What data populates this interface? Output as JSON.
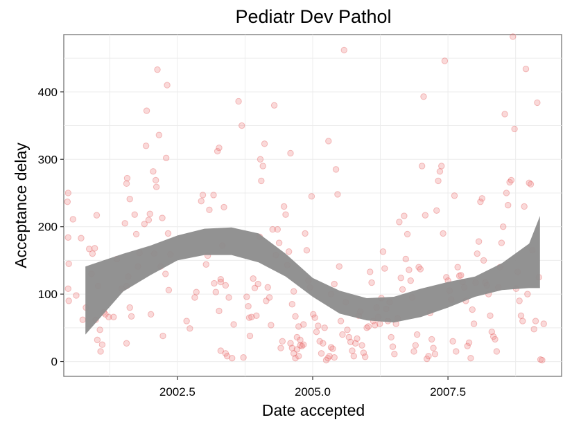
{
  "chart_data": {
    "type": "scatter",
    "title": "Pediatr Dev Pathol",
    "xlabel": "Date accepted",
    "ylabel": "Acceptance delay",
    "xlim": [
      2000.4,
      2009.6
    ],
    "ylim": [
      -22,
      485
    ],
    "x_ticks": [
      {
        "value": 2002.5,
        "label": "2002.5"
      },
      {
        "value": 2005.0,
        "label": "2005.0"
      },
      {
        "value": 2007.5,
        "label": "2007.5"
      }
    ],
    "y_ticks": [
      {
        "value": 0,
        "label": "0"
      },
      {
        "value": 100,
        "label": "100"
      },
      {
        "value": 200,
        "label": "200"
      },
      {
        "value": 300,
        "label": "300"
      },
      {
        "value": 400,
        "label": "400"
      }
    ],
    "grid": true,
    "legend": "none",
    "point_color": "#f08080",
    "point_stroke": "#e05050",
    "band_color": "#8c8c8c",
    "points": [
      [
        0.8,
        250
      ],
      [
        0.78,
        237
      ],
      [
        0.8,
        184
      ],
      [
        0.82,
        145
      ],
      [
        0.8,
        108
      ],
      [
        0.82,
        90
      ],
      [
        0.95,
        211
      ],
      [
        1.05,
        98
      ],
      [
        1.2,
        183
      ],
      [
        1.25,
        62
      ],
      [
        1.35,
        80
      ],
      [
        1.45,
        167
      ],
      [
        1.52,
        130
      ],
      [
        1.55,
        160
      ],
      [
        1.62,
        168
      ],
      [
        1.68,
        217
      ],
      [
        1.72,
        112
      ],
      [
        1.65,
        62
      ],
      [
        1.7,
        32
      ],
      [
        1.78,
        47
      ],
      [
        1.8,
        15
      ],
      [
        1.85,
        25
      ],
      [
        1.9,
        73
      ],
      [
        1.95,
        70
      ],
      [
        2.05,
        66
      ],
      [
        2.2,
        66
      ],
      [
        2.3,
        152
      ],
      [
        2.45,
        108
      ],
      [
        2.55,
        205
      ],
      [
        2.6,
        112
      ],
      [
        2.65,
        126
      ],
      [
        2.6,
        264
      ],
      [
        2.62,
        272
      ],
      [
        2.7,
        241
      ],
      [
        2.75,
        67
      ],
      [
        2.85,
        218
      ],
      [
        2.9,
        189
      ],
      [
        2.95,
        141
      ],
      [
        3.0,
        161
      ],
      [
        2.6,
        27
      ],
      [
        2.7,
        80
      ],
      [
        3.15,
        204
      ],
      [
        3.2,
        320
      ],
      [
        3.22,
        372
      ],
      [
        3.28,
        210
      ],
      [
        3.32,
        219
      ],
      [
        3.35,
        70
      ],
      [
        3.42,
        282
      ],
      [
        3.45,
        160
      ],
      [
        3.5,
        269
      ],
      [
        3.52,
        259
      ],
      [
        3.55,
        433
      ],
      [
        3.6,
        336
      ],
      [
        3.65,
        141
      ],
      [
        3.7,
        213
      ],
      [
        3.72,
        38
      ],
      [
        3.8,
        130
      ],
      [
        3.82,
        302
      ],
      [
        3.85,
        410
      ],
      [
        3.88,
        190
      ],
      [
        3.9,
        106
      ],
      [
        3.95,
        159
      ],
      [
        4.45,
        60
      ],
      [
        4.55,
        49
      ],
      [
        4.7,
        95
      ],
      [
        4.75,
        103
      ],
      [
        4.9,
        238
      ],
      [
        4.95,
        247
      ],
      [
        5.05,
        144
      ],
      [
        5.15,
        225
      ],
      [
        5.1,
        157
      ],
      [
        5.28,
        247
      ],
      [
        5.3,
        116
      ],
      [
        5.35,
        103
      ],
      [
        5.4,
        312
      ],
      [
        5.45,
        317
      ],
      [
        5.5,
        122
      ],
      [
        5.55,
        172
      ],
      [
        5.45,
        75
      ],
      [
        5.5,
        118
      ],
      [
        5.6,
        229
      ],
      [
        5.65,
        113
      ],
      [
        5.75,
        95
      ],
      [
        5.5,
        16
      ],
      [
        5.65,
        12
      ],
      [
        5.7,
        8
      ],
      [
        5.85,
        5
      ],
      [
        5.9,
        55
      ],
      [
        6.05,
        386
      ],
      [
        6.15,
        350
      ],
      [
        6.2,
        6
      ],
      [
        6.3,
        96
      ],
      [
        6.35,
        82
      ],
      [
        6.38,
        65
      ],
      [
        6.4,
        38
      ],
      [
        6.45,
        66
      ],
      [
        6.5,
        123
      ],
      [
        6.55,
        109
      ],
      [
        6.6,
        68
      ],
      [
        6.65,
        115
      ],
      [
        6.7,
        185
      ],
      [
        6.72,
        300
      ],
      [
        6.75,
        268
      ],
      [
        6.8,
        290
      ],
      [
        6.85,
        323
      ],
      [
        6.9,
        90
      ],
      [
        6.95,
        110
      ],
      [
        7.0,
        95
      ],
      [
        7.05,
        54
      ],
      [
        7.1,
        196
      ],
      [
        7.15,
        380
      ],
      [
        7.2,
        158
      ],
      [
        7.25,
        196
      ],
      [
        7.3,
        176
      ],
      [
        7.35,
        20
      ],
      [
        7.4,
        30
      ],
      [
        7.45,
        230
      ],
      [
        7.5,
        218
      ],
      [
        7.55,
        143
      ],
      [
        7.6,
        163
      ],
      [
        7.65,
        309
      ],
      [
        7.7,
        85
      ],
      [
        7.75,
        104
      ],
      [
        7.8,
        67
      ],
      [
        7.85,
        36
      ],
      [
        7.9,
        52
      ],
      [
        7.95,
        32
      ],
      [
        8.0,
        23
      ],
      [
        8.05,
        55
      ],
      [
        7.65,
        27
      ],
      [
        7.7,
        20
      ],
      [
        7.75,
        12
      ],
      [
        7.8,
        5
      ],
      [
        7.85,
        18
      ],
      [
        7.9,
        8
      ],
      [
        7.95,
        24
      ],
      [
        8.05,
        25
      ],
      [
        8.1,
        190
      ],
      [
        8.15,
        165
      ],
      [
        8.2,
        120
      ],
      [
        8.25,
        110
      ],
      [
        8.3,
        245
      ],
      [
        8.35,
        70
      ],
      [
        8.4,
        65
      ],
      [
        8.45,
        44
      ],
      [
        8.5,
        53
      ],
      [
        8.55,
        30
      ],
      [
        8.6,
        12
      ],
      [
        8.65,
        27
      ],
      [
        8.7,
        50
      ],
      [
        8.75,
        2
      ],
      [
        8.8,
        5
      ],
      [
        8.85,
        8
      ],
      [
        8.9,
        21
      ],
      [
        8.95,
        19
      ],
      [
        9.0,
        6
      ],
      [
        8.82,
        327
      ],
      [
        8.9,
        100
      ],
      [
        9.0,
        115
      ],
      [
        9.05,
        285
      ],
      [
        9.1,
        248
      ],
      [
        9.15,
        141
      ],
      [
        9.2,
        60
      ],
      [
        9.25,
        40
      ],
      [
        9.3,
        462
      ],
      [
        9.35,
        88
      ],
      [
        9.4,
        47
      ],
      [
        9.45,
        36
      ],
      [
        9.5,
        29
      ],
      [
        9.55,
        16
      ],
      [
        9.6,
        8
      ],
      [
        9.65,
        27
      ],
      [
        9.7,
        34
      ],
      [
        9.75,
        68
      ],
      [
        9.8,
        74
      ],
      [
        9.85,
        24
      ],
      [
        9.9,
        13
      ],
      [
        9.95,
        7
      ],
      [
        10.0,
        50
      ],
      [
        10.05,
        52
      ],
      [
        10.1,
        133
      ],
      [
        10.15,
        117
      ],
      [
        10.2,
        60
      ],
      [
        10.25,
        54
      ],
      [
        10.3,
        80
      ],
      [
        10.35,
        66
      ],
      [
        10.4,
        56
      ],
      [
        10.45,
        94
      ],
      [
        10.5,
        163
      ],
      [
        10.55,
        138
      ],
      [
        10.6,
        78
      ],
      [
        10.65,
        60
      ],
      [
        10.7,
        88
      ],
      [
        10.75,
        36
      ],
      [
        10.8,
        22
      ],
      [
        10.85,
        11
      ],
      [
        10.9,
        56
      ],
      [
        10.95,
        64
      ],
      [
        11.0,
        207
      ],
      [
        11.05,
        124
      ],
      [
        11.1,
        107
      ],
      [
        11.15,
        216
      ],
      [
        11.2,
        152
      ],
      [
        11.25,
        189
      ],
      [
        11.3,
        136
      ],
      [
        11.35,
        120
      ],
      [
        11.4,
        95
      ],
      [
        11.45,
        15
      ],
      [
        11.5,
        24
      ],
      [
        11.55,
        40
      ],
      [
        11.6,
        140
      ],
      [
        11.65,
        137
      ],
      [
        11.7,
        290
      ],
      [
        11.75,
        393
      ],
      [
        11.8,
        217
      ],
      [
        11.85,
        4
      ],
      [
        11.9,
        8
      ],
      [
        11.95,
        72
      ],
      [
        12.0,
        33
      ],
      [
        12.05,
        20
      ],
      [
        12.1,
        11
      ],
      [
        12.15,
        224
      ],
      [
        12.2,
        268
      ],
      [
        12.25,
        282
      ],
      [
        12.3,
        290
      ],
      [
        12.35,
        190
      ],
      [
        12.4,
        446
      ],
      [
        12.45,
        125
      ],
      [
        12.5,
        120
      ],
      [
        12.55,
        105
      ],
      [
        12.6,
        92
      ],
      [
        12.65,
        30
      ],
      [
        12.7,
        246
      ],
      [
        12.75,
        15
      ],
      [
        12.8,
        140
      ],
      [
        12.85,
        127
      ],
      [
        12.9,
        128
      ],
      [
        12.95,
        118
      ],
      [
        13.0,
        110
      ],
      [
        13.05,
        90
      ],
      [
        13.1,
        23
      ],
      [
        13.15,
        28
      ],
      [
        13.2,
        5
      ],
      [
        13.25,
        77
      ],
      [
        13.3,
        56
      ],
      [
        13.35,
        117
      ],
      [
        13.4,
        160
      ],
      [
        13.45,
        178
      ],
      [
        13.5,
        237
      ],
      [
        13.55,
        242
      ],
      [
        13.6,
        150
      ],
      [
        13.65,
        117
      ],
      [
        13.7,
        113
      ],
      [
        13.75,
        100
      ],
      [
        13.8,
        68
      ],
      [
        13.85,
        44
      ],
      [
        13.9,
        37
      ],
      [
        13.95,
        33
      ],
      [
        14.0,
        15
      ],
      [
        14.05,
        110
      ],
      [
        14.1,
        140
      ],
      [
        14.15,
        176
      ],
      [
        14.2,
        200
      ],
      [
        14.25,
        367
      ],
      [
        14.3,
        250
      ],
      [
        14.35,
        232
      ],
      [
        14.4,
        266
      ],
      [
        14.45,
        269
      ],
      [
        14.5,
        482
      ],
      [
        14.55,
        345
      ],
      [
        14.6,
        108
      ],
      [
        14.65,
        133
      ],
      [
        14.7,
        90
      ],
      [
        14.75,
        68
      ],
      [
        14.8,
        60
      ],
      [
        14.85,
        230
      ],
      [
        14.9,
        434
      ],
      [
        14.95,
        100
      ],
      [
        15.0,
        265
      ],
      [
        15.05,
        263
      ],
      [
        15.1,
        165
      ],
      [
        15.15,
        48
      ],
      [
        15.2,
        60
      ],
      [
        15.25,
        384
      ],
      [
        15.3,
        125
      ],
      [
        15.35,
        3
      ],
      [
        15.4,
        2
      ],
      [
        15.45,
        56
      ]
    ],
    "smooth_band": {
      "x": [
        2000.8,
        2001.5,
        2002.0,
        2002.5,
        2003.0,
        2003.5,
        2004.0,
        2004.5,
        2005.0,
        2005.5,
        2006.0,
        2006.5,
        2007.0,
        2007.5,
        2008.0,
        2008.5,
        2009.0,
        2009.2
      ],
      "lower": [
        40,
        104,
        128,
        150,
        158,
        158,
        147,
        126,
        96,
        71,
        61,
        58,
        66,
        80,
        96,
        106,
        109,
        109
      ],
      "upper": [
        141,
        160,
        172,
        187,
        197,
        199,
        190,
        160,
        124,
        105,
        94,
        96,
        108,
        118,
        126,
        146,
        175,
        216
      ]
    }
  }
}
